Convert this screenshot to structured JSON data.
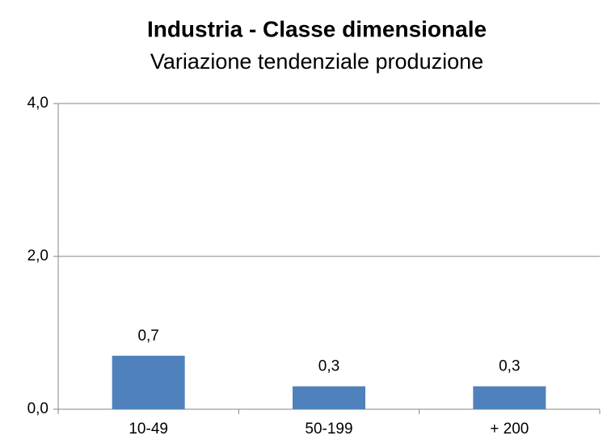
{
  "chart_data": {
    "type": "bar",
    "title": "Industria - Classe dimensionale",
    "subtitle": "Variazione tendenziale produzione",
    "categories": [
      "10-49",
      "50-199",
      "+ 200"
    ],
    "values": [
      0.7,
      0.3,
      0.3
    ],
    "value_labels": [
      "0,7",
      "0,3",
      "0,3"
    ],
    "color": "#4f81bd",
    "ylim": [
      0,
      4
    ],
    "yticks": [
      {
        "value": 0,
        "label": "0,0"
      },
      {
        "value": 2,
        "label": "2,0"
      },
      {
        "value": 4,
        "label": "4,0"
      }
    ],
    "grid": true
  }
}
